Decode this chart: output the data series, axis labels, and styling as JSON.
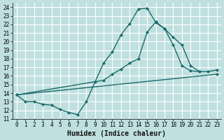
{
  "xlabel": "Humidex (Indice chaleur)",
  "bg_color": "#c0e0e0",
  "grid_color": "#ffffff",
  "line_color": "#1a6b6b",
  "xlim": [
    -0.5,
    23.5
  ],
  "ylim": [
    11,
    24.5
  ],
  "xticks": [
    0,
    1,
    2,
    3,
    4,
    5,
    6,
    7,
    8,
    9,
    10,
    11,
    12,
    13,
    14,
    15,
    16,
    17,
    18,
    19,
    20,
    21,
    22,
    23
  ],
  "yticks": [
    11,
    12,
    13,
    14,
    15,
    16,
    17,
    18,
    19,
    20,
    21,
    22,
    23,
    24
  ],
  "curve1_x": [
    0,
    1,
    2,
    3,
    4,
    5,
    6,
    7,
    8,
    9,
    10,
    11,
    12,
    13,
    14,
    15,
    16,
    17,
    18,
    19,
    20,
    21
  ],
  "curve1_y": [
    13.8,
    13.0,
    13.0,
    12.7,
    12.6,
    12.1,
    11.75,
    11.5,
    13.0,
    15.3,
    17.5,
    18.8,
    20.8,
    22.1,
    23.8,
    23.9,
    22.2,
    21.5,
    19.6,
    17.2,
    16.6,
    16.5
  ],
  "curve2_x": [
    0,
    10,
    11,
    12,
    13,
    14,
    15,
    16,
    17,
    18,
    19,
    20,
    21,
    22,
    23
  ],
  "curve2_y": [
    13.8,
    15.5,
    16.2,
    16.8,
    17.5,
    18.0,
    21.1,
    22.3,
    21.5,
    20.5,
    19.6,
    17.2,
    16.5,
    16.5,
    16.7
  ],
  "curve3_x": [
    0,
    23
  ],
  "curve3_y": [
    13.8,
    16.2
  ]
}
